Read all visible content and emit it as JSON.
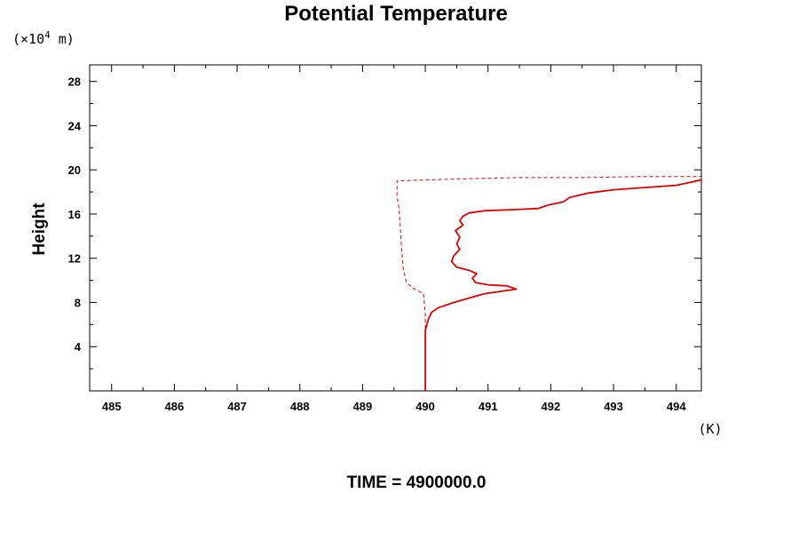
{
  "chart_data": {
    "type": "line",
    "title": "Potential Temperature",
    "ylabel": "Height",
    "yunit_prefix": "(×10",
    "yunit_exp": "4",
    "yunit_suffix": " m)",
    "xunit": "(K)",
    "footer": "TIME = 4900000.0",
    "xlim": [
      484.65,
      494.4
    ],
    "ylim": [
      0,
      29.5
    ],
    "x_ticks": [
      485,
      486,
      487,
      488,
      489,
      490,
      491,
      492,
      493,
      494
    ],
    "x_tick_labels": [
      "485",
      "486",
      "487",
      "488",
      "489",
      "490",
      "491",
      "492",
      "493",
      "494"
    ],
    "y_ticks": [
      4,
      8,
      12,
      16,
      20,
      24,
      28
    ],
    "y_tick_labels": [
      "4",
      "8",
      "12",
      "16",
      "20",
      "24",
      "28"
    ],
    "grid": false,
    "line_color": "#e00000",
    "series": [
      {
        "style": "solid",
        "points": [
          [
            490.0,
            0.0
          ],
          [
            490.0,
            3.0
          ],
          [
            490.0,
            5.5
          ],
          [
            490.05,
            6.5
          ],
          [
            490.1,
            7.1
          ],
          [
            490.2,
            7.5
          ],
          [
            490.4,
            7.9
          ],
          [
            490.7,
            8.4
          ],
          [
            490.95,
            8.8
          ],
          [
            491.2,
            9.0
          ],
          [
            491.45,
            9.2
          ],
          [
            491.3,
            9.5
          ],
          [
            491.0,
            9.6
          ],
          [
            490.8,
            9.8
          ],
          [
            490.75,
            10.2
          ],
          [
            490.82,
            10.6
          ],
          [
            490.7,
            10.9
          ],
          [
            490.5,
            11.2
          ],
          [
            490.42,
            11.7
          ],
          [
            490.45,
            12.2
          ],
          [
            490.55,
            12.8
          ],
          [
            490.5,
            13.3
          ],
          [
            490.55,
            13.9
          ],
          [
            490.48,
            14.5
          ],
          [
            490.6,
            15.0
          ],
          [
            490.55,
            15.4
          ],
          [
            490.6,
            15.8
          ],
          [
            490.7,
            16.1
          ],
          [
            490.95,
            16.3
          ],
          [
            491.4,
            16.4
          ],
          [
            491.8,
            16.5
          ],
          [
            491.95,
            16.8
          ],
          [
            492.2,
            17.1
          ],
          [
            492.3,
            17.5
          ],
          [
            492.6,
            17.9
          ],
          [
            493.0,
            18.2
          ],
          [
            493.5,
            18.4
          ],
          [
            494.0,
            18.6
          ],
          [
            494.25,
            18.9
          ],
          [
            494.4,
            19.1
          ]
        ]
      },
      {
        "style": "dashed",
        "points": [
          [
            490.0,
            0.0
          ],
          [
            490.0,
            4.0
          ],
          [
            490.0,
            7.0
          ],
          [
            489.97,
            8.8
          ],
          [
            489.8,
            9.3
          ],
          [
            489.7,
            9.8
          ],
          [
            489.65,
            11.0
          ],
          [
            489.62,
            13.0
          ],
          [
            489.6,
            15.0
          ],
          [
            489.58,
            16.5
          ],
          [
            489.55,
            17.6
          ],
          [
            489.55,
            19.0
          ],
          [
            490.7,
            19.2
          ],
          [
            491.5,
            19.3
          ],
          [
            492.5,
            19.3
          ],
          [
            493.5,
            19.4
          ],
          [
            494.4,
            19.4
          ]
        ]
      }
    ]
  }
}
